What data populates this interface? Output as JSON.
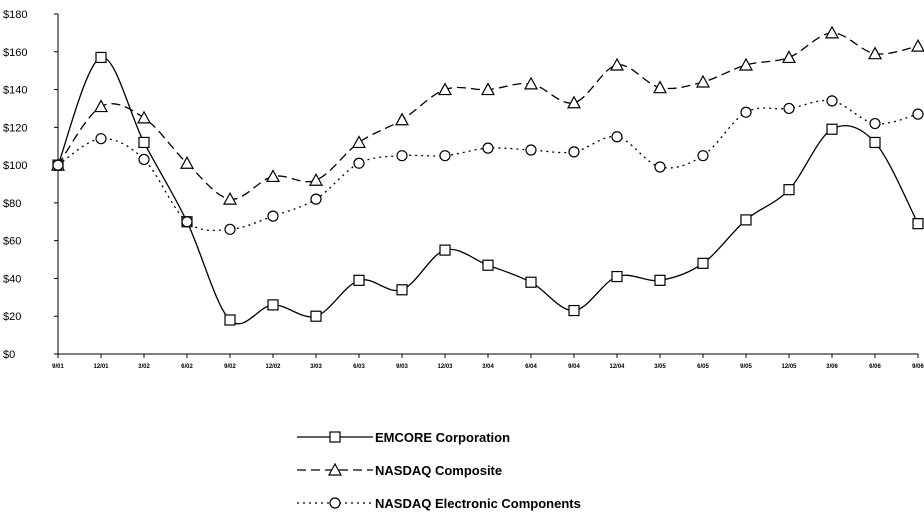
{
  "chart_data": {
    "type": "line",
    "categories": [
      "9/01",
      "12/01",
      "3/02",
      "6/02",
      "9/02",
      "12/02",
      "3/03",
      "6/03",
      "9/03",
      "12/03",
      "3/04",
      "6/04",
      "9/04",
      "12/04",
      "3/05",
      "6/05",
      "9/05",
      "12/05",
      "3/06",
      "6/06",
      "9/06"
    ],
    "ytick_labels": [
      "$0",
      "$20",
      "$40",
      "$60",
      "$80",
      "$100",
      "$120",
      "$140",
      "$160",
      "$180"
    ],
    "ylim": [
      0,
      180
    ],
    "grid": false,
    "legend_position": "bottom",
    "title": "",
    "xlabel": "",
    "ylabel": "",
    "series": [
      {
        "name": "EMCORE Corporation",
        "marker": "square",
        "dash": "solid",
        "values": [
          100,
          157,
          112,
          70,
          18,
          26,
          20,
          39,
          34,
          55,
          47,
          38,
          23,
          41,
          39,
          48,
          71,
          87,
          119,
          112,
          69
        ]
      },
      {
        "name": "NASDAQ Composite",
        "marker": "triangle",
        "dash": "dashed",
        "values": [
          100,
          131,
          125,
          101,
          82,
          94,
          92,
          112,
          124,
          140,
          140,
          143,
          133,
          153,
          141,
          144,
          153,
          157,
          170,
          159,
          163
        ]
      },
      {
        "name": "NASDAQ Electronic Components",
        "marker": "circle",
        "dash": "dotted",
        "values": [
          100,
          114,
          103,
          70,
          66,
          73,
          82,
          101,
          105,
          105,
          109,
          108,
          107,
          115,
          99,
          105,
          128,
          130,
          134,
          122,
          127
        ]
      }
    ]
  }
}
